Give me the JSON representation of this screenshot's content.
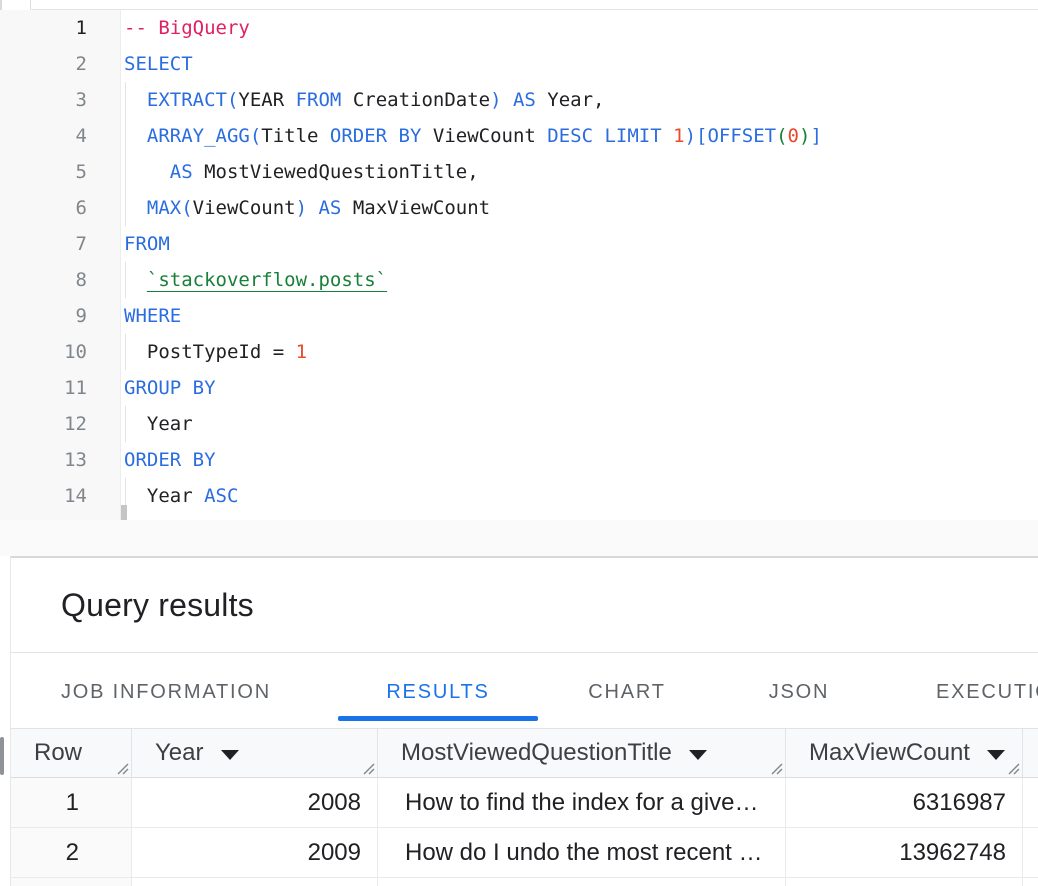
{
  "colors": {
    "accent": "#1a73e8",
    "syntax": {
      "keyword": "#2b6de0",
      "comment": "#e0215f",
      "number": "#e9492b",
      "green": "#188038"
    }
  },
  "editor": {
    "lines": [
      {
        "guide": false,
        "tokens": [
          {
            "t": "-- BigQuery",
            "c": "c"
          }
        ]
      },
      {
        "guide": false,
        "tokens": [
          {
            "t": "SELECT",
            "c": "k"
          }
        ]
      },
      {
        "guide": true,
        "tokens": [
          {
            "t": "  ",
            "c": "p"
          },
          {
            "t": "EXTRACT(",
            "c": "k"
          },
          {
            "t": "YEAR ",
            "c": "p"
          },
          {
            "t": "FROM",
            "c": "k"
          },
          {
            "t": " CreationDate",
            "c": "p"
          },
          {
            "t": ") AS",
            "c": "k"
          },
          {
            "t": " Year,",
            "c": "p"
          }
        ]
      },
      {
        "guide": true,
        "tokens": [
          {
            "t": "  ",
            "c": "p"
          },
          {
            "t": "ARRAY_AGG(",
            "c": "k"
          },
          {
            "t": "Title ",
            "c": "p"
          },
          {
            "t": "ORDER BY",
            "c": "k"
          },
          {
            "t": " ViewCount ",
            "c": "p"
          },
          {
            "t": "DESC LIMIT ",
            "c": "k"
          },
          {
            "t": "1",
            "c": "n"
          },
          {
            "t": ")[OFFSET",
            "c": "k"
          },
          {
            "t": "(",
            "c": "g"
          },
          {
            "t": "0",
            "c": "n"
          },
          {
            "t": ")",
            "c": "g"
          },
          {
            "t": "]",
            "c": "k"
          }
        ]
      },
      {
        "guide": true,
        "tokens": [
          {
            "t": "    ",
            "c": "p"
          },
          {
            "t": "AS",
            "c": "k"
          },
          {
            "t": " MostViewedQuestionTitle,",
            "c": "p"
          }
        ]
      },
      {
        "guide": true,
        "tokens": [
          {
            "t": "  ",
            "c": "p"
          },
          {
            "t": "MAX(",
            "c": "k"
          },
          {
            "t": "ViewCount",
            "c": "p"
          },
          {
            "t": ") AS",
            "c": "k"
          },
          {
            "t": " MaxViewCount",
            "c": "p"
          }
        ]
      },
      {
        "guide": false,
        "tokens": [
          {
            "t": "FROM",
            "c": "k"
          }
        ]
      },
      {
        "guide": true,
        "tokens": [
          {
            "t": "  ",
            "c": "p"
          },
          {
            "t": "`stackoverflow.posts`",
            "c": "ref"
          }
        ]
      },
      {
        "guide": false,
        "tokens": [
          {
            "t": "WHERE",
            "c": "k"
          }
        ]
      },
      {
        "guide": true,
        "tokens": [
          {
            "t": "  PostTypeId = ",
            "c": "p"
          },
          {
            "t": "1",
            "c": "n"
          }
        ]
      },
      {
        "guide": false,
        "tokens": [
          {
            "t": "GROUP BY",
            "c": "k"
          }
        ]
      },
      {
        "guide": true,
        "tokens": [
          {
            "t": "  Year",
            "c": "p"
          }
        ]
      },
      {
        "guide": false,
        "tokens": [
          {
            "t": "ORDER BY",
            "c": "k"
          }
        ]
      },
      {
        "guide": true,
        "tokens": [
          {
            "t": "  Year ",
            "c": "p"
          },
          {
            "t": "ASC",
            "c": "k"
          }
        ]
      }
    ]
  },
  "results": {
    "title": "Query results"
  },
  "tabs": {
    "items": [
      {
        "label": "JOB INFORMATION",
        "active": false
      },
      {
        "label": "RESULTS",
        "active": true
      },
      {
        "label": "CHART",
        "active": false
      },
      {
        "label": "JSON",
        "active": false
      },
      {
        "label": "EXECUTION DETAILS",
        "active": false
      }
    ]
  },
  "table": {
    "columns": [
      {
        "label": "Row",
        "sortable": false,
        "align": "right"
      },
      {
        "label": "Year",
        "sortable": true,
        "align": "right"
      },
      {
        "label": "MostViewedQuestionTitle",
        "sortable": true,
        "align": "left"
      },
      {
        "label": "MaxViewCount",
        "sortable": true,
        "align": "right"
      }
    ],
    "rows": [
      [
        "1",
        "2008",
        "How to find the index for a give…",
        "6316987"
      ],
      [
        "2",
        "2009",
        "How do I undo the most recent …",
        "13962748"
      ],
      [
        "",
        "",
        "",
        ""
      ]
    ]
  }
}
